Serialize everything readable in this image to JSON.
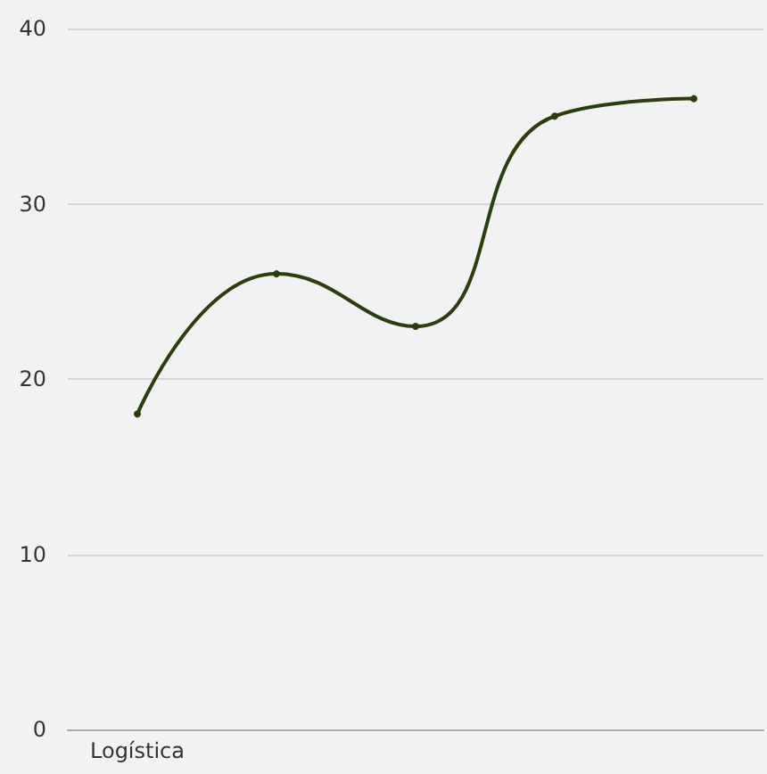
{
  "chart_data": {
    "type": "line",
    "categories": [
      "Logística",
      null,
      null,
      null,
      null
    ],
    "series": [
      {
        "color": "#2b3f0c",
        "values": [
          18,
          26,
          23,
          35,
          36
        ]
      }
    ],
    "ylim": [
      0,
      40
    ],
    "yticks": [
      0,
      10,
      20,
      30,
      40
    ],
    "grid": "y",
    "marker": "circle",
    "line_style": "solid"
  }
}
